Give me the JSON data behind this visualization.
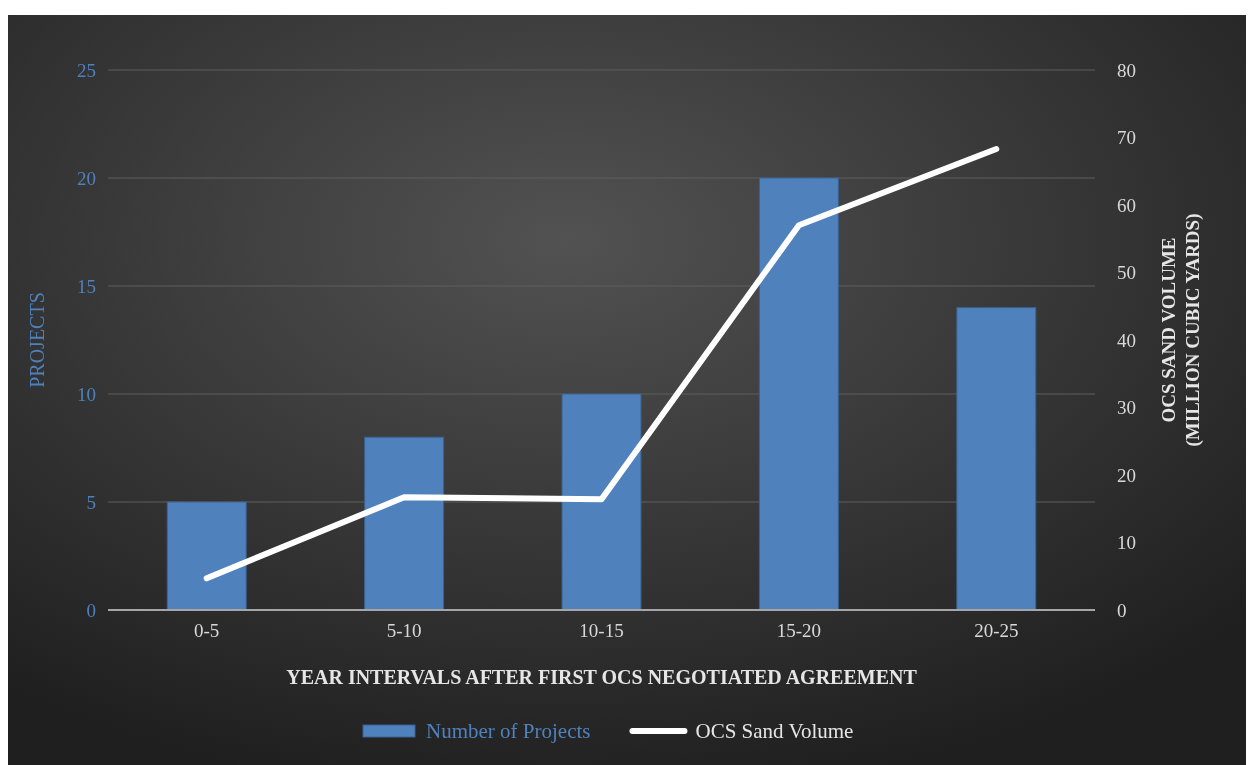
{
  "chart_data": {
    "type": "bar",
    "categories": [
      "0-5",
      "5-10",
      "10-15",
      "15-20",
      "20-25"
    ],
    "xlabel": "YEAR INTERVALS AFTER FIRST OCS NEGOTIATED AGREEMENT",
    "ylabel": "PROJECTS",
    "y2label": "OCS SAND VOLUME\n(MILLION CUBIC YARDS)",
    "series": [
      {
        "name": "Number of Projects",
        "color": "#4f81bd",
        "values": [
          5,
          8,
          10,
          20,
          14
        ]
      },
      {
        "name": "OCS Sand Volume",
        "type": "line",
        "axis": "y2",
        "color": "#ffffff",
        "values": [
          4.7,
          16.7,
          16.4,
          57,
          68.3
        ]
      }
    ],
    "ylim": [
      0,
      25
    ],
    "yticks": [
      0,
      5,
      10,
      15,
      20,
      25
    ],
    "y2lim": [
      0,
      80
    ],
    "y2ticks": [
      0,
      10,
      20,
      30,
      40,
      50,
      60,
      70,
      80
    ],
    "grid": "y",
    "legend": "bottom",
    "marker": "none",
    "line_style": "solid"
  }
}
